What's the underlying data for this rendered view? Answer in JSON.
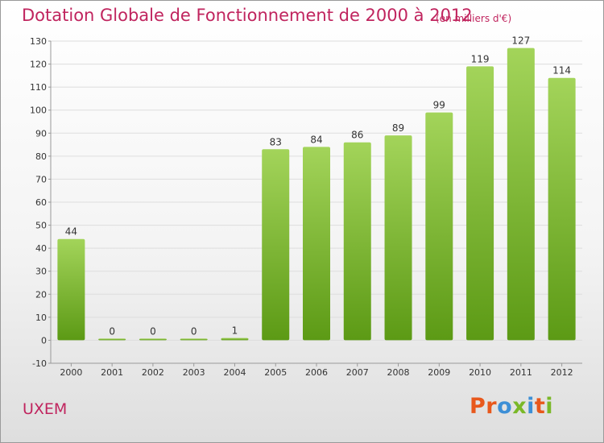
{
  "header": {
    "title": "Dotation Globale de Fonctionnement de 2000 à 2012",
    "subtitle": "(en milliers d'€)"
  },
  "footer": {
    "commune": "UXEM",
    "brand_letters": [
      "P",
      "r",
      "o",
      "x",
      "i",
      "t",
      "i"
    ]
  },
  "colors": {
    "title": "#c0245e",
    "bar_top": "#a3d45a",
    "bar_bottom": "#5c9a15",
    "grid": "#dddddd",
    "brand": [
      "#e8581c",
      "#e8581c",
      "#3d8fd6",
      "#7ab828",
      "#3d8fd6",
      "#e8581c",
      "#7ab828"
    ]
  },
  "chart_data": {
    "type": "bar",
    "title": "Dotation Globale de Fonctionnement de 2000 à 2012",
    "subtitle": "(en milliers d'€)",
    "categories": [
      "2000",
      "2001",
      "2002",
      "2003",
      "2004",
      "2005",
      "2006",
      "2007",
      "2008",
      "2009",
      "2010",
      "2011",
      "2012"
    ],
    "values": [
      44,
      0,
      0,
      0,
      1,
      83,
      84,
      86,
      89,
      99,
      119,
      127,
      114
    ],
    "ylim": [
      -10,
      130
    ],
    "yticks": [
      -10,
      0,
      10,
      20,
      30,
      40,
      50,
      60,
      70,
      80,
      90,
      100,
      110,
      120,
      130
    ],
    "grid": true,
    "data_labels": true
  }
}
